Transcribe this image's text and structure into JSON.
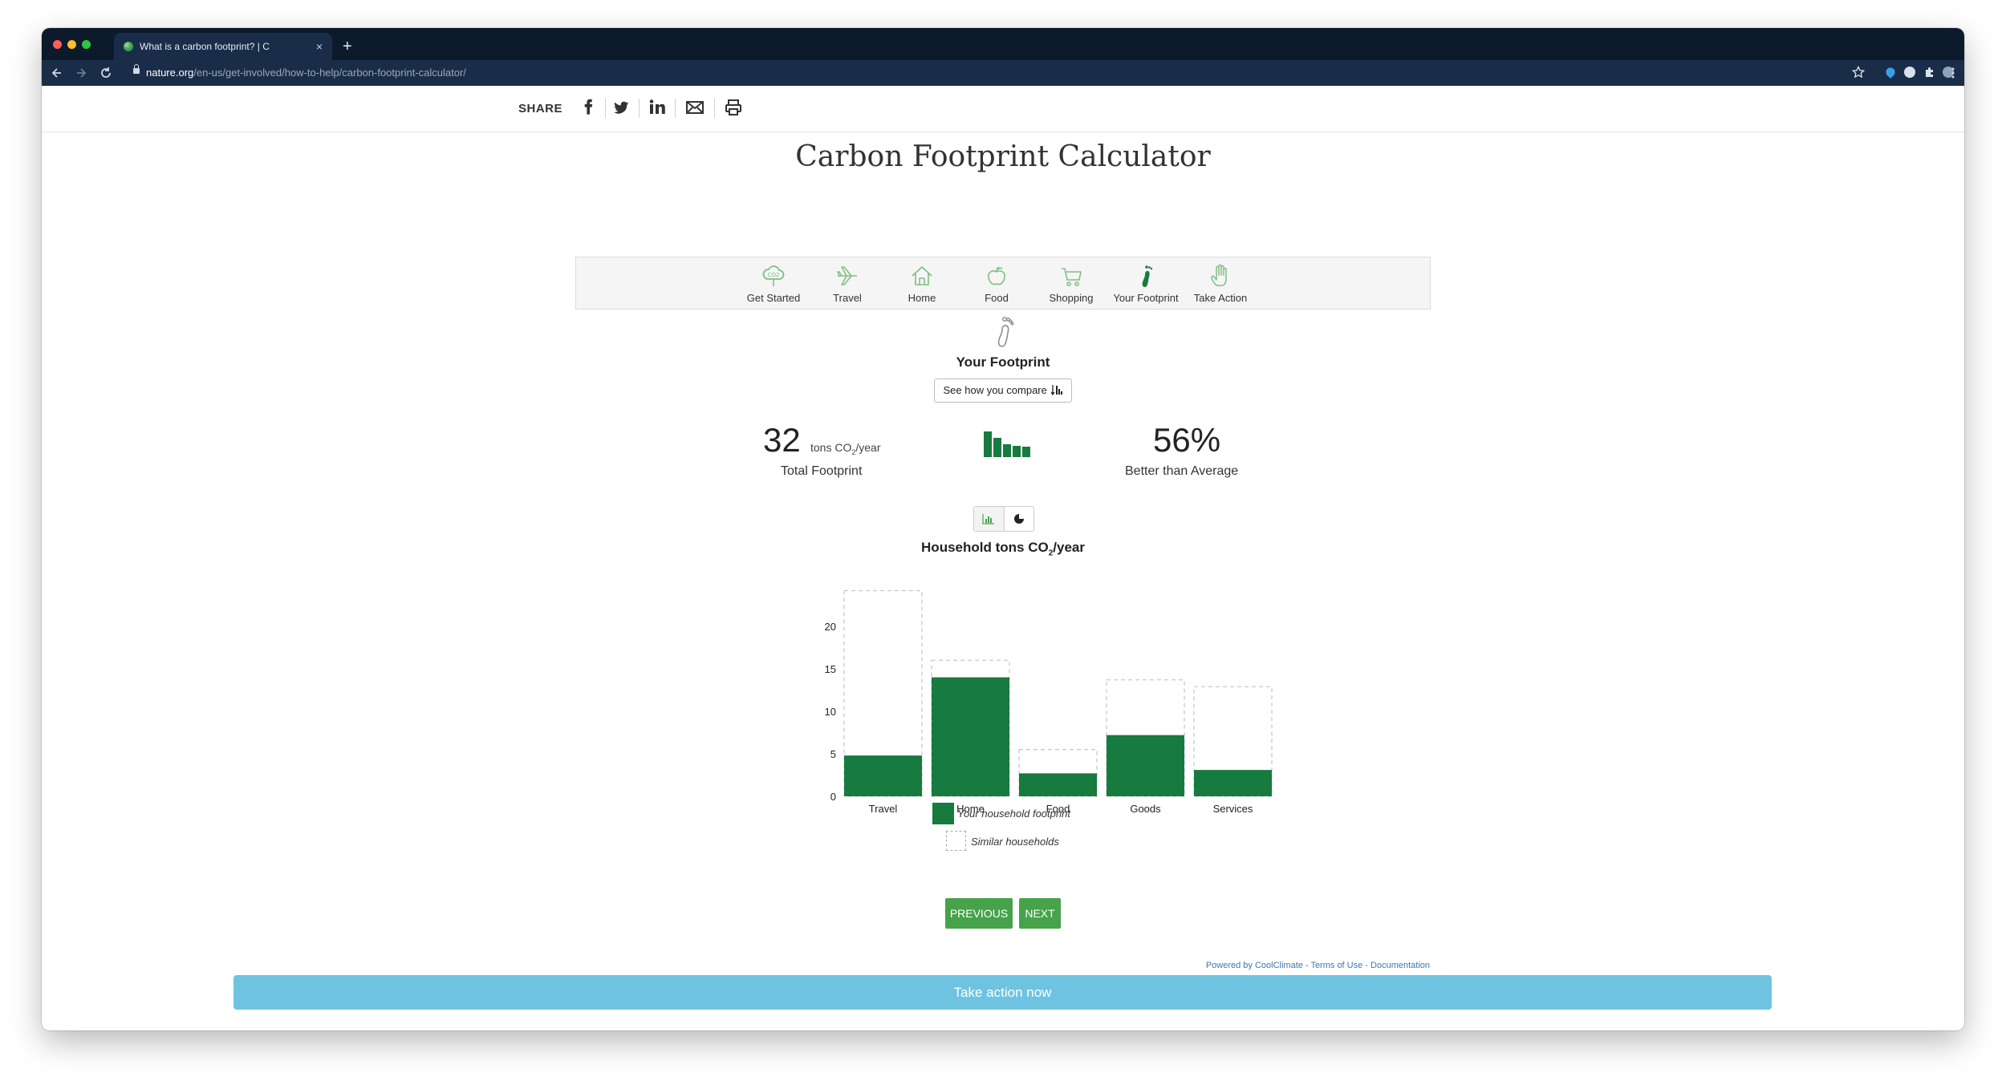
{
  "browser": {
    "tab_title": "What is a carbon footprint? | C",
    "close_glyph": "×",
    "new_tab_glyph": "+",
    "url_domain": "nature.org",
    "url_path": "/en-us/get-involved/how-to-help/carbon-footprint-calculator/"
  },
  "share": {
    "label": "SHARE",
    "icons": [
      "facebook-icon",
      "twitter-icon",
      "linkedin-icon",
      "email-icon",
      "print-icon"
    ]
  },
  "page": {
    "title": "Carbon Footprint Calculator"
  },
  "steps": [
    {
      "label": "Get Started",
      "icon": "co2-cloud-icon"
    },
    {
      "label": "Travel",
      "icon": "airplane-icon"
    },
    {
      "label": "Home",
      "icon": "house-icon"
    },
    {
      "label": "Food",
      "icon": "apple-icon"
    },
    {
      "label": "Shopping",
      "icon": "cart-icon"
    },
    {
      "label": "Your Footprint",
      "icon": "foot-icon",
      "active": true
    },
    {
      "label": "Take Action",
      "icon": "hand-icon"
    }
  ],
  "footprint": {
    "title": "Your Footprint",
    "compare_button": "See how you compare",
    "total_value": "32",
    "total_unit_prefix": "tons CO",
    "total_unit_sub": "2",
    "total_unit_suffix": "/year",
    "total_label": "Total Footprint",
    "pct_value": "56%",
    "pct_label": "Better than Average"
  },
  "chart_data": {
    "type": "bar",
    "title_prefix": "Household tons CO",
    "title_sub": "2",
    "title_suffix": "/year",
    "categories": [
      "Travel",
      "Home",
      "Food",
      "Goods",
      "Services"
    ],
    "series": [
      {
        "name": "Your household footprint",
        "values": [
          4.8,
          14,
          2.7,
          7.2,
          3.1
        ]
      },
      {
        "name": "Similar households",
        "values": [
          24.2,
          16,
          5.5,
          13.7,
          12.9
        ]
      }
    ],
    "ylim": [
      0,
      25
    ],
    "yticks": [
      0,
      5,
      10,
      15,
      20
    ],
    "colors": {
      "footprint": "#177a3f",
      "similar_border": "#c9c9c9"
    }
  },
  "legend": {
    "footprint": "Your household footprint",
    "similar": "Similar households"
  },
  "nav": {
    "previous": "PREVIOUS",
    "next": "NEXT"
  },
  "credits": "Powered by CoolClimate - Terms of Use - Documentation",
  "action": {
    "label": "Take action now"
  },
  "colors": {
    "green": "#177a3f",
    "button_green": "#46a34a",
    "action_blue": "#6ec3e0",
    "icon_green": "#7fbf82"
  }
}
